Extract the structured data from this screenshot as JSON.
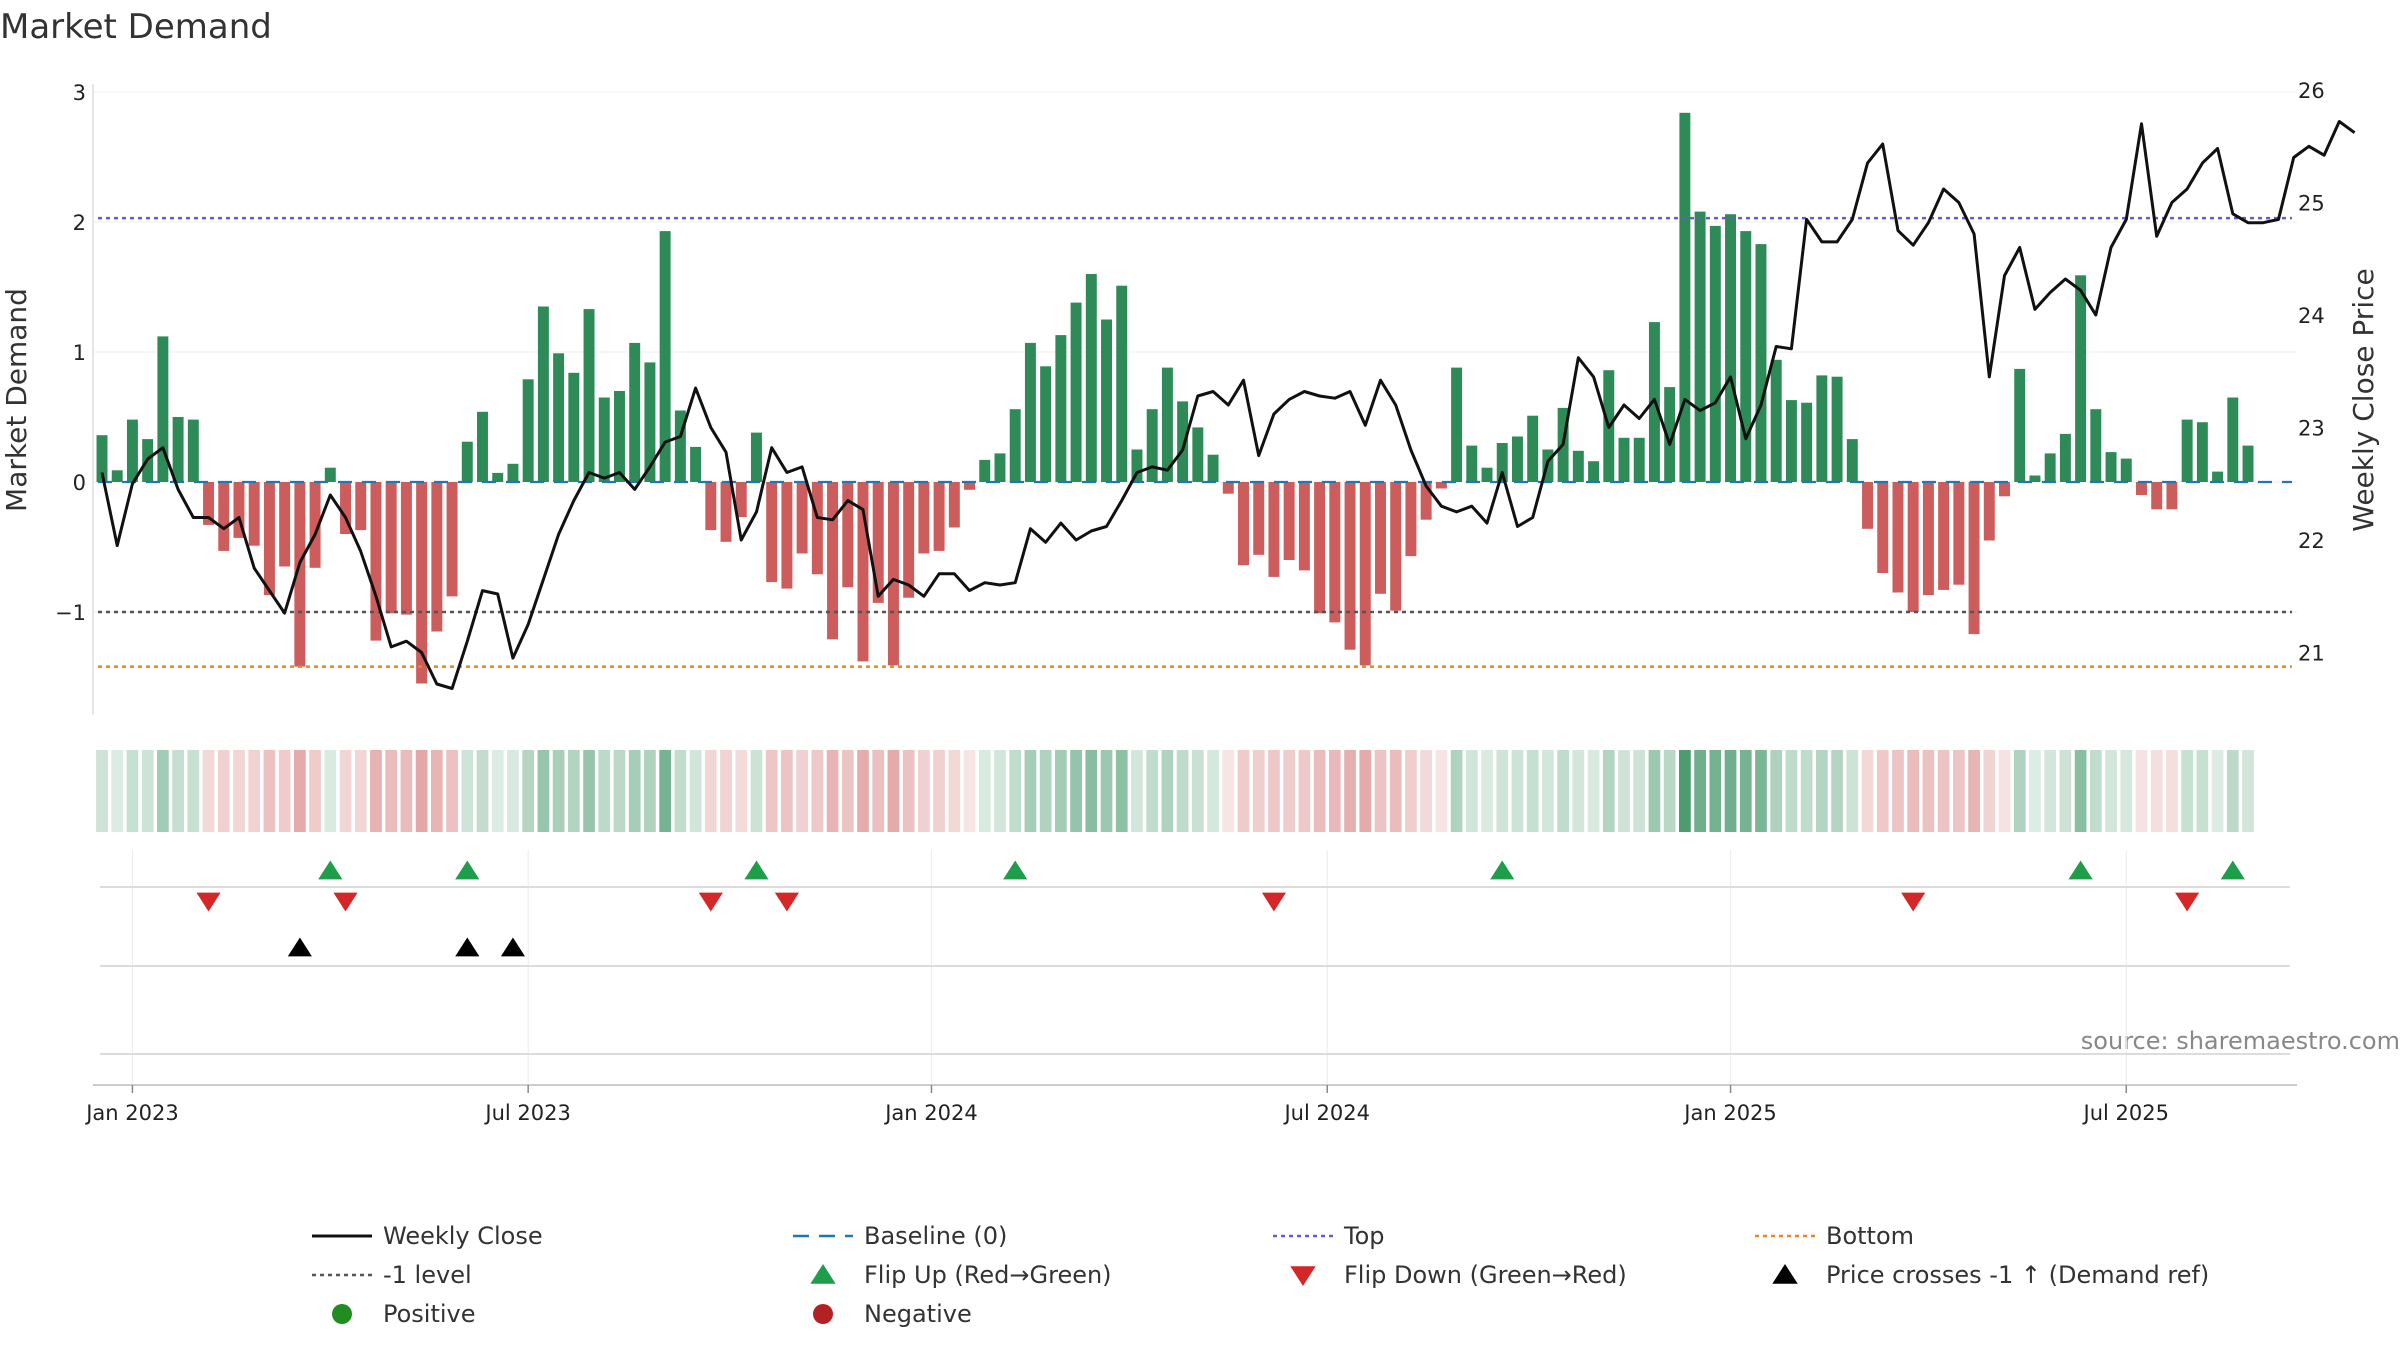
{
  "chart_data": {
    "type": "bar",
    "title": "Market Demand",
    "ylabel": "Market Demand",
    "y2label": "Weekly Close Price",
    "ylim": [
      -1.8,
      3.0
    ],
    "y2lim": [
      20.5,
      26.0
    ],
    "y_ticks": [
      3,
      2,
      1,
      0,
      -1
    ],
    "y_tick_labels": [
      "3",
      "2",
      "1",
      "0",
      "−1"
    ],
    "y2_ticks": [
      26,
      25,
      24,
      23,
      22,
      21
    ],
    "x_start": "2022-12-19",
    "weeks": 145,
    "x_tick_labels": [
      "Jan 2023",
      "Jul 2023",
      "Jan 2024",
      "Jul 2024",
      "Jan 2025",
      "Jul 2025"
    ],
    "x_tick_weeks": [
      2,
      28,
      54.5,
      80.5,
      107,
      133
    ],
    "reference_lines": {
      "top": 2.03,
      "minus_one": -1.0,
      "bottom": -1.42,
      "baseline": 0
    },
    "colors": {
      "positive": "#2e8b57",
      "negative": "#cd5c5c",
      "close": "#111111",
      "baseline": "#1f77b4",
      "top": "#6a5acd",
      "bottom": "#e08a1e",
      "minus_one": "#555555",
      "flip_up": "#1e9e4a",
      "flip_down": "#d62728",
      "cross": "#000000",
      "legend_positive": "#228b22",
      "legend_negative": "#b22222"
    },
    "demand": [
      0.36,
      0.09,
      0.48,
      0.33,
      1.12,
      0.5,
      0.48,
      -0.33,
      -0.53,
      -0.43,
      -0.49,
      -0.87,
      -0.65,
      -1.42,
      -0.66,
      0.11,
      -0.4,
      -0.37,
      -1.22,
      -1.01,
      -1.02,
      -1.55,
      -1.15,
      -0.88,
      0.31,
      0.54,
      0.07,
      0.14,
      0.79,
      1.35,
      0.99,
      0.84,
      1.33,
      0.65,
      0.7,
      1.07,
      0.92,
      1.93,
      0.55,
      0.27,
      -0.37,
      -0.46,
      -0.27,
      0.38,
      -0.77,
      -0.82,
      -0.55,
      -0.71,
      -1.21,
      -0.81,
      -1.38,
      -0.93,
      -1.41,
      -0.89,
      -0.55,
      -0.53,
      -0.35,
      -0.06,
      0.17,
      0.22,
      0.56,
      1.07,
      0.89,
      1.13,
      1.38,
      1.6,
      1.25,
      1.51,
      0.25,
      0.56,
      0.88,
      0.62,
      0.42,
      0.21,
      -0.09,
      -0.64,
      -0.56,
      -0.73,
      -0.6,
      -0.68,
      -1.01,
      -1.08,
      -1.29,
      -1.41,
      -0.86,
      -0.99,
      -0.57,
      -0.29,
      -0.05,
      0.88,
      0.28,
      0.11,
      0.3,
      0.35,
      0.51,
      0.25,
      0.57,
      0.24,
      0.16,
      0.86,
      0.34,
      0.34,
      1.23,
      0.73,
      2.84,
      2.08,
      1.97,
      2.06,
      1.93,
      1.83,
      0.94,
      0.63,
      0.61,
      0.82,
      0.81,
      0.33,
      -0.36,
      -0.7,
      -0.85,
      -1.0,
      -0.87,
      -0.83,
      -0.79,
      -1.17,
      -0.45,
      -0.11,
      0.87,
      0.05,
      0.22,
      0.37,
      1.59,
      0.56,
      0.23,
      0.18,
      -0.1,
      -0.21,
      -0.21,
      0.48,
      0.46,
      0.08,
      0.65,
      0.28
    ],
    "close": [
      22.6,
      21.95,
      22.5,
      22.72,
      22.82,
      22.45,
      22.2,
      22.2,
      22.1,
      22.2,
      21.75,
      21.55,
      21.35,
      21.8,
      22.05,
      22.4,
      22.2,
      21.9,
      21.5,
      21.05,
      21.1,
      21.0,
      20.72,
      20.68,
      21.1,
      21.55,
      21.52,
      20.95,
      21.25,
      21.65,
      22.05,
      22.35,
      22.6,
      22.55,
      22.6,
      22.45,
      22.65,
      22.87,
      22.92,
      23.35,
      23.0,
      22.78,
      22.0,
      22.25,
      22.82,
      22.6,
      22.65,
      22.2,
      22.18,
      22.35,
      22.27,
      21.5,
      21.65,
      21.6,
      21.5,
      21.7,
      21.7,
      21.55,
      21.62,
      21.6,
      21.62,
      22.1,
      21.98,
      22.15,
      22.0,
      22.08,
      22.12,
      22.35,
      22.6,
      22.65,
      22.62,
      22.8,
      23.28,
      23.32,
      23.2,
      23.42,
      22.75,
      23.12,
      23.25,
      23.32,
      23.28,
      23.26,
      23.32,
      23.02,
      23.42,
      23.2,
      22.8,
      22.48,
      22.3,
      22.25,
      22.3,
      22.15,
      22.6,
      22.12,
      22.2,
      22.7,
      22.85,
      23.62,
      23.45,
      23.0,
      23.2,
      23.08,
      23.25,
      22.85,
      23.25,
      23.15,
      23.22,
      23.45,
      22.9,
      23.2,
      23.72,
      23.7,
      24.85,
      24.65,
      24.65,
      24.85,
      25.35,
      25.52,
      24.75,
      24.62,
      24.82,
      25.12,
      25.0,
      24.72,
      23.45,
      24.35,
      24.6,
      24.05,
      24.2,
      24.32,
      24.22,
      24.0,
      24.6,
      24.85,
      25.7,
      24.7,
      25.0,
      25.12,
      25.35,
      25.48,
      24.9,
      24.82,
      24.82,
      24.85,
      25.4,
      25.5,
      25.42,
      25.72,
      25.62
    ],
    "flip_up_weeks": [
      15,
      24,
      43,
      60,
      92,
      130,
      140
    ],
    "flip_down_weeks": [
      7,
      16,
      40,
      45,
      77,
      119,
      137
    ],
    "cross_weeks": [
      13,
      24,
      27
    ],
    "legend": [
      {
        "label": "Weekly Close",
        "marker": "line",
        "color": "#111111"
      },
      {
        "label": "Baseline (0)",
        "marker": "dashed",
        "color": "#1f77b4"
      },
      {
        "label": "Top",
        "marker": "dotted",
        "color": "#6a5acd"
      },
      {
        "label": "Bottom",
        "marker": "dotted",
        "color": "#e08a1e"
      },
      {
        "label": "-1 level",
        "marker": "dotted",
        "color": "#555555"
      },
      {
        "label": "Flip Up (Red→Green)",
        "marker": "triangle-up",
        "color": "#1e9e4a"
      },
      {
        "label": "Flip Down (Green→Red)",
        "marker": "triangle-down",
        "color": "#d62728"
      },
      {
        "label": "Price crosses -1 ↑ (Demand ref)",
        "marker": "triangle-up",
        "color": "#000000"
      },
      {
        "label": "Positive",
        "marker": "circle",
        "color": "#228b22"
      },
      {
        "label": "Negative",
        "marker": "circle",
        "color": "#b22222"
      }
    ],
    "legend_placement": "bottom"
  },
  "source_note": "source: sharemaestro.com"
}
